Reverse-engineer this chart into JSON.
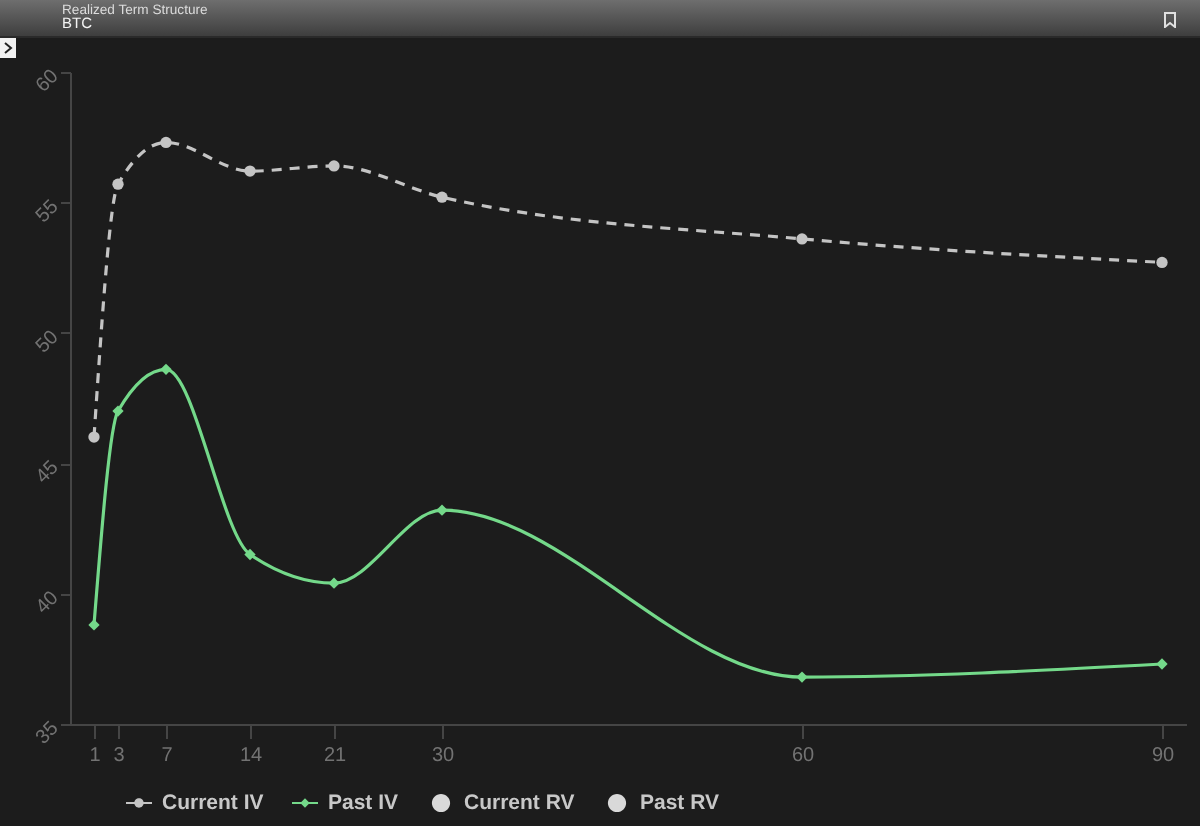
{
  "chart_data": {
    "type": "line",
    "title": "Realized Term Structure",
    "subtitle": "BTC",
    "x": [
      1,
      3,
      7,
      14,
      21,
      30,
      60,
      90
    ],
    "xlim": [
      -1,
      92
    ],
    "xticks": [
      1,
      3,
      7,
      14,
      21,
      30,
      60,
      90
    ],
    "ylim": [
      35,
      60
    ],
    "yticks": [
      35,
      40,
      45,
      50,
      55,
      60
    ],
    "grid": false,
    "legend": "bottom",
    "series": [
      {
        "name": "Current IV",
        "color": "#c4c4c4",
        "line_style": "dashed",
        "marker": "circle",
        "values": [
          46.0,
          55.7,
          57.3,
          56.2,
          56.4,
          55.2,
          53.6,
          52.7
        ]
      },
      {
        "name": "Past IV",
        "color": "#74d98a",
        "line_style": "solid",
        "marker": "diamond",
        "values": [
          38.8,
          47.0,
          48.6,
          41.5,
          40.4,
          43.2,
          36.8,
          37.3
        ]
      },
      {
        "name": "Current RV",
        "type": "scatter",
        "color": "#d9d9d9",
        "marker": "circle",
        "values": [
          null,
          null,
          null,
          null,
          null,
          null,
          null,
          null
        ]
      },
      {
        "name": "Past RV",
        "type": "scatter",
        "color": "#d9d9d9",
        "marker": "circle",
        "values": [
          null,
          null,
          null,
          null,
          null,
          null,
          null,
          null
        ]
      }
    ]
  }
}
